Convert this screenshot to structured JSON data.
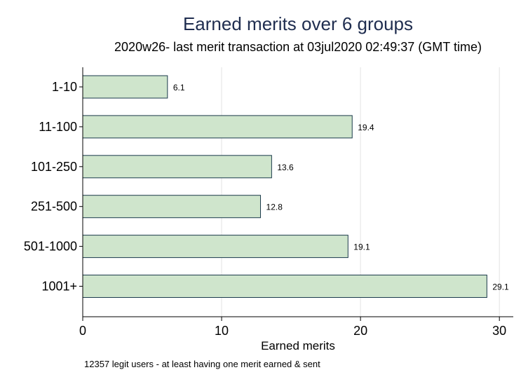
{
  "chart_data": {
    "type": "bar",
    "orientation": "horizontal",
    "title": "Earned merits over 6 groups",
    "subtitle": "2020w26- last merit transaction at 03jul2020 02:49:37 (GMT time)",
    "categories": [
      "1-10",
      "11-100",
      "101-250",
      "251-500",
      "501-1000",
      "1001+"
    ],
    "values": [
      6.1,
      19.4,
      13.6,
      12.8,
      19.1,
      29.1
    ],
    "value_labels": [
      "6.1",
      "19.4",
      "13.6",
      "12.8",
      "19.1",
      "29.1"
    ],
    "xlabel": "Earned merits",
    "ylabel": "",
    "xlim": [
      0,
      31
    ],
    "xticks": [
      0,
      10,
      20,
      30
    ],
    "xtick_labels": [
      "0",
      "10",
      "20",
      "30"
    ],
    "grid": "vertical",
    "note": "12357 legit users - at least having one merit earned & sent",
    "colors": {
      "bar_fill": "#cfe5cc",
      "bar_stroke": "#1b3a4b",
      "title": "#1f2d4f",
      "grid": "#e3e3e3"
    }
  }
}
